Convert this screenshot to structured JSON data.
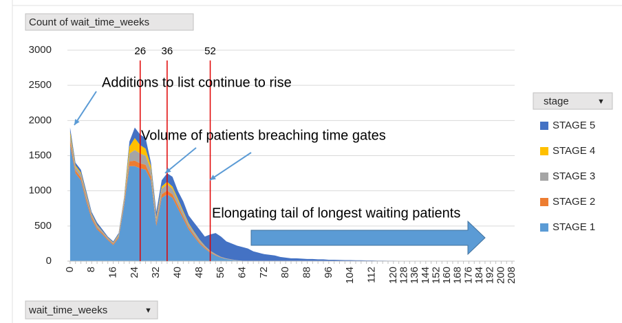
{
  "chart_data": {
    "type": "stacked_area",
    "value_field": "Count of wait_time_weeks",
    "axis_field": "wait_time_weeks",
    "legend_title": "stage",
    "legend": "right",
    "grid": true,
    "ylim": [
      0,
      3000
    ],
    "yticks": [
      0,
      500,
      1000,
      1500,
      2000,
      2500,
      3000
    ],
    "categories": [
      0,
      null,
      null,
      null,
      8,
      null,
      null,
      null,
      16,
      null,
      null,
      null,
      24,
      null,
      null,
      null,
      32,
      null,
      null,
      null,
      40,
      null,
      null,
      null,
      48,
      null,
      null,
      null,
      56,
      null,
      null,
      null,
      64,
      null,
      null,
      null,
      72,
      null,
      null,
      null,
      80,
      null,
      null,
      null,
      88,
      null,
      null,
      null,
      96,
      null,
      null,
      null,
      104,
      null,
      null,
      null,
      112,
      null,
      null,
      null,
      120,
      null,
      128,
      null,
      136,
      null,
      144,
      null,
      152,
      null,
      160,
      null,
      168,
      null,
      176,
      null,
      184,
      null,
      192,
      null,
      200,
      null,
      208
    ],
    "vlines": [
      26,
      36,
      52
    ],
    "vline_color": "#e00000",
    "annotations": [
      "Additions to list continue to rise",
      "Volume of patients breaching time gates",
      "Elongating tail of longest waiting patients"
    ],
    "series": [
      {
        "name": "STAGE 1",
        "color": "#5b9bd5",
        "values": [
          1650,
          1250,
          1150,
          850,
          600,
          450,
          380,
          300,
          230,
          330,
          780,
          1350,
          1350,
          1320,
          1300,
          1150,
          500,
          900,
          950,
          900,
          750,
          600,
          450,
          350,
          250,
          180,
          120,
          80,
          50,
          30,
          20,
          10,
          5,
          0,
          0,
          0,
          0,
          0,
          0,
          0,
          0,
          0,
          0,
          0,
          0,
          0,
          0,
          0,
          0,
          0,
          0,
          0,
          0,
          0,
          0,
          0,
          0,
          0,
          0,
          0,
          0,
          0,
          0,
          0,
          0,
          0,
          0,
          0,
          0,
          0,
          0,
          0,
          0,
          0,
          0,
          0,
          0,
          0,
          0,
          0,
          0,
          0,
          0
        ]
      },
      {
        "name": "STAGE 2",
        "color": "#ed7d31",
        "values": [
          60,
          40,
          40,
          40,
          30,
          25,
          20,
          15,
          15,
          20,
          40,
          70,
          80,
          70,
          70,
          55,
          40,
          50,
          55,
          50,
          45,
          35,
          30,
          25,
          20,
          15,
          10,
          8,
          5,
          3,
          2,
          1,
          0,
          0,
          0,
          0,
          0,
          0,
          0,
          0,
          0,
          0,
          0,
          0,
          0,
          0,
          0,
          0,
          0,
          0,
          0,
          0,
          0,
          0,
          0,
          0,
          0,
          0,
          0,
          0,
          0,
          0,
          0,
          0,
          0,
          0,
          0,
          0,
          0,
          0,
          0,
          0,
          0,
          0,
          0,
          0,
          0,
          0,
          0,
          0,
          0,
          0,
          0
        ]
      },
      {
        "name": "STAGE 3",
        "color": "#a5a5a5",
        "values": [
          80,
          50,
          50,
          50,
          30,
          30,
          20,
          15,
          15,
          20,
          40,
          110,
          150,
          140,
          130,
          95,
          60,
          80,
          90,
          80,
          70,
          55,
          45,
          35,
          30,
          20,
          15,
          10,
          6,
          4,
          2,
          1,
          0,
          0,
          0,
          0,
          0,
          0,
          0,
          0,
          0,
          0,
          0,
          0,
          0,
          0,
          0,
          0,
          0,
          0,
          0,
          0,
          0,
          0,
          0,
          0,
          0,
          0,
          0,
          0,
          0,
          0,
          0,
          0,
          0,
          0,
          0,
          0,
          0,
          0,
          0,
          0,
          0,
          0,
          0,
          0,
          0,
          0,
          0,
          0,
          0,
          0,
          0
        ]
      },
      {
        "name": "STAGE 4",
        "color": "#ffc000",
        "values": [
          50,
          20,
          20,
          20,
          10,
          10,
          5,
          5,
          5,
          10,
          20,
          100,
          170,
          120,
          100,
          50,
          20,
          30,
          35,
          30,
          25,
          20,
          15,
          10,
          8,
          5,
          3,
          2,
          1,
          1,
          0,
          0,
          0,
          0,
          0,
          0,
          0,
          0,
          0,
          0,
          0,
          0,
          0,
          0,
          0,
          0,
          0,
          0,
          0,
          0,
          0,
          0,
          0,
          0,
          0,
          0,
          0,
          0,
          0,
          0,
          0,
          0,
          0,
          0,
          0,
          0,
          0,
          0,
          0,
          0,
          0,
          0,
          0,
          0,
          0,
          0,
          0,
          0,
          0,
          0,
          0,
          0,
          0
        ]
      },
      {
        "name": "STAGE 5",
        "color": "#4472c4",
        "values": [
          60,
          40,
          40,
          40,
          30,
          35,
          25,
          15,
          15,
          20,
          20,
          70,
          150,
          150,
          150,
          50,
          80,
          90,
          120,
          140,
          110,
          140,
          110,
          130,
          142,
          130,
          232,
          300,
          288,
          242,
          226,
          208,
          195,
          180,
          140,
          120,
          100,
          90,
          80,
          60,
          50,
          40,
          40,
          35,
          30,
          30,
          25,
          25,
          20,
          20,
          18,
          15,
          15,
          12,
          12,
          10,
          10,
          8,
          8,
          6,
          6,
          5,
          4,
          4,
          3,
          3,
          2,
          2,
          2,
          1,
          1,
          1,
          0,
          0,
          0,
          0,
          0,
          0,
          0,
          0,
          0,
          0,
          0
        ]
      }
    ]
  }
}
